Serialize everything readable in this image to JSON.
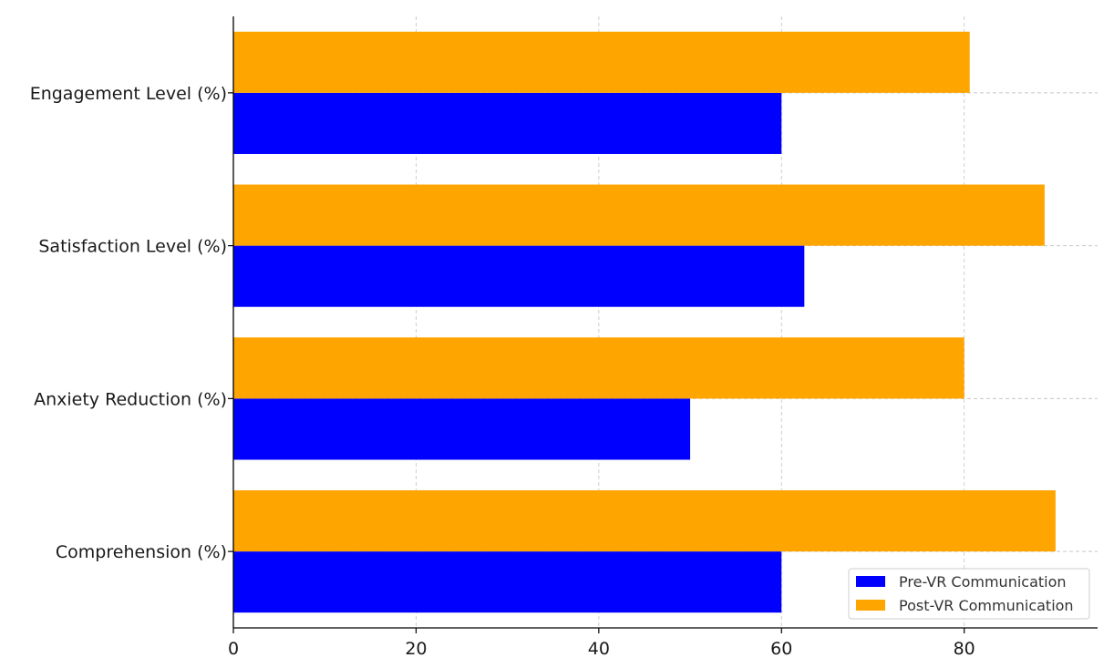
{
  "chart_data": {
    "type": "bar",
    "orientation": "horizontal",
    "categories": [
      "Comprehension (%)",
      "Anxiety Reduction (%)",
      "Satisfaction Level (%)",
      "Engagement Level (%)"
    ],
    "series": [
      {
        "name": "Pre-VR Communication",
        "values": [
          60,
          50,
          62.5,
          60
        ],
        "color": "#0000ff"
      },
      {
        "name": "Post-VR Communication",
        "values": [
          90,
          80,
          88.8,
          80.6
        ],
        "color": "#ffa500"
      }
    ],
    "x_ticks": [
      "0",
      "20",
      "40",
      "60",
      "80"
    ],
    "x_tick_values": [
      0,
      20,
      40,
      60,
      80
    ],
    "xlim": [
      0,
      94.6
    ],
    "title": "",
    "xlabel": "",
    "ylabel": "",
    "grid": true,
    "legend_position": "lower-right"
  }
}
